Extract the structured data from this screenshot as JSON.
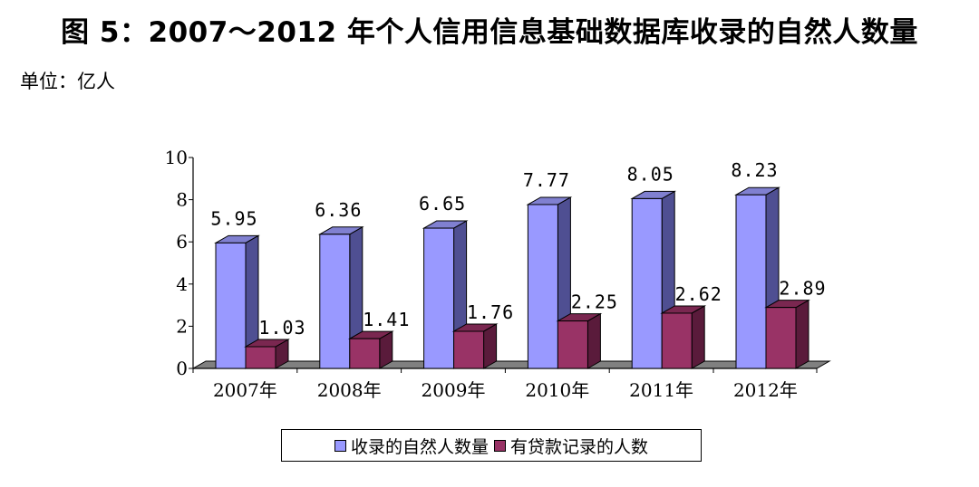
{
  "title": "图 5：2007～2012 年个人信用信息基础数据库收录的自然人数量",
  "unit_label": "单位：亿人",
  "colors": {
    "series1_front": "#9999ff",
    "series1_side": "#4f4f92",
    "series1_top": "#8080d0",
    "series2_front": "#993366",
    "series2_side": "#5a1b3b",
    "series2_top": "#7a2750",
    "floor": "#808080"
  },
  "chart_data": {
    "type": "bar",
    "categories": [
      "2007年",
      "2008年",
      "2009年",
      "2010年",
      "2011年",
      "2012年"
    ],
    "series": [
      {
        "name": "收录的自然人数量",
        "values": [
          5.95,
          6.36,
          6.65,
          7.77,
          8.05,
          8.23
        ],
        "labels": [
          "5.95",
          "6.36",
          "6.65",
          "7.77",
          "8.05",
          "8.23"
        ]
      },
      {
        "name": "有贷款记录的人数",
        "values": [
          1.03,
          1.41,
          1.76,
          2.25,
          2.62,
          2.89
        ],
        "labels": [
          "1.03",
          "1.41",
          "1.76",
          "2.25",
          "2.62",
          "2.89"
        ]
      }
    ],
    "yticks": [
      "0",
      "2",
      "4",
      "6",
      "8",
      "10"
    ],
    "ylim": [
      0,
      10
    ],
    "title": "",
    "xlabel": "",
    "ylabel": "",
    "legend_position": "bottom",
    "grid": false,
    "style": "3d-column"
  }
}
